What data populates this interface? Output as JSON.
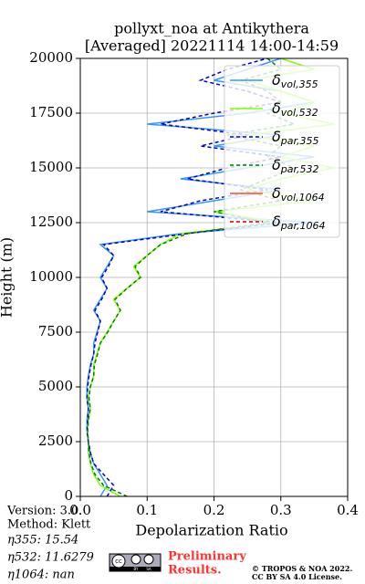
{
  "chart_data": {
    "type": "profile",
    "title": [
      "pollyxt_noa at Antikythera",
      "[Averaged] 20221114 14:00-14:59"
    ],
    "x_label": "Depolarization Ratio",
    "y_label": "Height (m)",
    "xlim": [
      0,
      0.4
    ],
    "xticks": [
      {
        "value": 0,
        "label": "0.0"
      },
      0.1,
      0.2,
      0.3,
      0.4
    ],
    "ylim": [
      0,
      20000
    ],
    "yticks": [
      0,
      2500,
      5000,
      7500,
      10000,
      12500,
      15000,
      17500,
      20000
    ],
    "grid": true,
    "legend": "upper right",
    "heights": [
      0,
      500,
      1000,
      1500,
      2000,
      2500,
      3000,
      3500,
      4000,
      4500,
      5000,
      5500,
      6000,
      6500,
      7000,
      7500,
      8000,
      8500,
      9000,
      9500,
      10000,
      10500,
      11000,
      11500,
      12000,
      12500,
      13000,
      13500,
      14000,
      14500,
      15000,
      15500,
      16000,
      16500,
      17000,
      17500,
      18000,
      18500,
      19000,
      19500,
      20000
    ],
    "series": [
      {
        "name": "δvol,355",
        "color": "#3797ff",
        "dash": false,
        "values": [
          0.03,
          0.04,
          0.03,
          0.02,
          0.015,
          0.012,
          0.01,
          0.01,
          0.012,
          0.01,
          0.01,
          0.012,
          0.015,
          0.02,
          0.02,
          0.025,
          0.03,
          0.02,
          0.03,
          0.04,
          0.03,
          0.04,
          0.05,
          0.03,
          0.15,
          0.35,
          0.1,
          0.2,
          0.3,
          0.15,
          0.25,
          0.35,
          0.2,
          0.3,
          0.1,
          0.25,
          0.35,
          0.3,
          0.2,
          0.25,
          0.3
        ]
      },
      {
        "name": "δvol,532",
        "color": "#80ff00",
        "dash": false,
        "values": [
          0.06,
          0.03,
          0.02,
          0.015,
          0.012,
          0.012,
          0.01,
          0.012,
          0.015,
          0.012,
          0.015,
          0.02,
          0.02,
          0.025,
          0.03,
          0.04,
          0.05,
          0.06,
          0.05,
          0.07,
          0.09,
          0.08,
          0.1,
          0.12,
          0.15,
          0.3,
          0.2,
          0.35,
          0.25,
          0.3,
          0.38,
          0.3,
          0.35,
          0.25,
          0.38,
          0.3,
          0.35,
          0.3,
          0.25,
          0.35,
          0.3
        ]
      },
      {
        "name": "δpar,355",
        "color": "#0000cc",
        "dash": true,
        "values": [
          0.04,
          0.05,
          0.035,
          0.02,
          0.015,
          0.012,
          0.01,
          0.011,
          0.012,
          0.01,
          0.011,
          0.013,
          0.016,
          0.02,
          0.022,
          0.026,
          0.03,
          0.022,
          0.032,
          0.04,
          0.032,
          0.042,
          0.05,
          0.035,
          0.16,
          0.3,
          0.12,
          0.18,
          0.28,
          0.16,
          0.22,
          0.3,
          0.18,
          0.25,
          0.12,
          0.2,
          0.3,
          0.25,
          0.18,
          0.22,
          0.28
        ]
      },
      {
        "name": "δpar,532",
        "color": "#008000",
        "dash": true,
        "values": [
          0.07,
          0.035,
          0.022,
          0.016,
          0.013,
          0.012,
          0.011,
          0.012,
          0.015,
          0.013,
          0.015,
          0.02,
          0.021,
          0.026,
          0.03,
          0.041,
          0.05,
          0.06,
          0.052,
          0.07,
          0.09,
          0.082,
          0.1,
          0.12,
          0.16,
          0.28,
          0.2,
          0.3,
          0.24,
          0.28,
          0.32,
          0.28,
          0.3,
          0.22,
          0.32,
          0.28,
          0.3,
          0.28,
          0.24,
          0.3,
          0.28
        ]
      },
      {
        "name": "δvol,1064",
        "color": "#ff4d2e",
        "dash": false,
        "values": [
          null,
          null,
          null,
          null,
          null,
          null,
          null,
          null,
          null,
          null,
          null,
          null,
          null,
          null,
          null,
          null,
          null,
          null,
          null,
          null,
          null,
          null,
          null,
          null,
          null,
          null,
          null,
          null,
          null,
          null,
          null,
          null,
          null,
          null,
          null,
          null,
          null,
          null,
          null,
          null,
          null
        ]
      },
      {
        "name": "δpar,1064",
        "color": "#cc0000",
        "dash": true,
        "values": [
          null,
          null,
          null,
          null,
          null,
          null,
          null,
          null,
          null,
          null,
          null,
          null,
          null,
          null,
          null,
          null,
          null,
          null,
          null,
          null,
          null,
          null,
          null,
          null,
          null,
          null,
          null,
          null,
          null,
          null,
          null,
          null,
          null,
          null,
          null,
          null,
          null,
          null,
          null,
          null,
          null
        ]
      }
    ]
  },
  "info": [
    "Version: 3.0",
    "Method: Klett",
    "η355:  15.54",
    "η532: 11.6279",
    "η1064:    nan"
  ],
  "logo": [
    "cc",
    "BY",
    "SA"
  ],
  "preliminary": [
    "Preliminary",
    "Results."
  ],
  "copyright": [
    "© TROPOS & NOA 2022.",
    "CC BY SA 4.0 License."
  ]
}
